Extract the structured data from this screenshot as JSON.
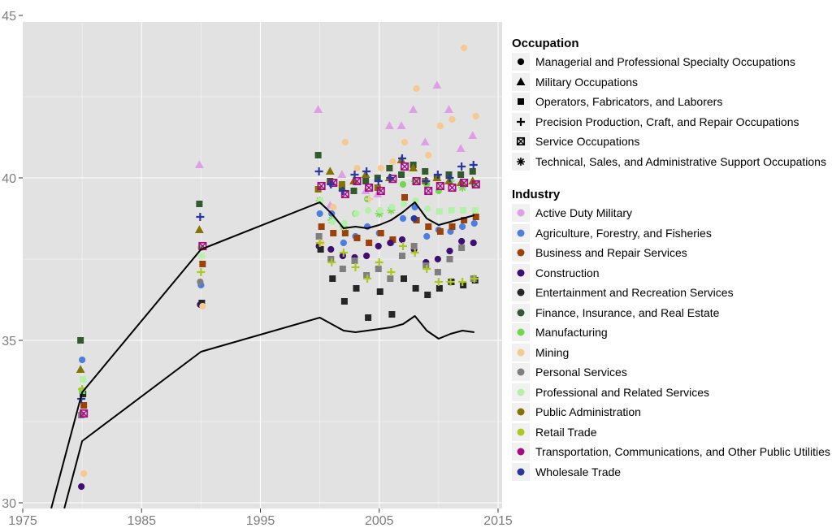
{
  "figure": {
    "background": "#FFFFFF",
    "panel_background": "#E2E2E2",
    "grid_major_color": "#FFFFFF",
    "grid_minor_color": "#FFFFFF",
    "axis_text_color": "#7E7E7E",
    "tick_color": "#333333",
    "trend_line_color": "#000000"
  },
  "legend": {
    "occupation_title": "Occupation",
    "industry_title": "Industry"
  },
  "chart_data": {
    "type": "scatter",
    "title": "",
    "xlabel": "",
    "ylabel": "",
    "xlim": [
      1975,
      2015.3
    ],
    "ylim": [
      29.8,
      45.2
    ],
    "x_ticks": [
      1975,
      1985,
      1995,
      2005,
      2015
    ],
    "y_ticks": [
      30,
      35,
      40,
      45
    ],
    "x_minor": [
      1980,
      1990,
      2000,
      2010
    ],
    "y_minor": [
      32.5,
      37.5,
      42.5
    ],
    "grid": true,
    "legend_position": "right",
    "shape_legend_title": "Occupation",
    "color_legend_title": "Industry",
    "occupations": [
      {
        "label": "Managerial and Professional Specialty Occupations",
        "shape": "circle"
      },
      {
        "label": "Military Occupations",
        "shape": "triangle"
      },
      {
        "label": "Operators, Fabricators, and Laborers",
        "shape": "square"
      },
      {
        "label": "Precision Production, Craft, and Repair Occupations",
        "shape": "plus"
      },
      {
        "label": "Service Occupations",
        "shape": "boxx"
      },
      {
        "label": "Technical, Sales, and Administrative Support Occupations",
        "shape": "asterisk"
      }
    ],
    "series": [
      {
        "name": "Active Duty Military",
        "color": "#DE9FE6",
        "shape": "triangle",
        "points": [
          [
            1990,
            40.4
          ],
          [
            2000,
            42.1
          ],
          [
            2001,
            39.15
          ],
          [
            2002,
            40.1
          ],
          [
            2003,
            39.9
          ],
          [
            2004,
            39.6
          ],
          [
            2005,
            39.5
          ],
          [
            2006,
            41.6
          ],
          [
            2007,
            41.6
          ],
          [
            2008,
            42.1
          ],
          [
            2009,
            41.1
          ],
          [
            2010,
            42.85
          ],
          [
            2011,
            42.1
          ],
          [
            2012,
            40.9
          ],
          [
            2013,
            41.3
          ]
        ]
      },
      {
        "name": "Agriculture, Forestry, and Fisheries",
        "color": "#4C7EE0",
        "shape": "circle",
        "points": [
          [
            1980,
            34.4
          ],
          [
            1990,
            36.7
          ],
          [
            2000,
            38.9
          ],
          [
            2001,
            38.9
          ],
          [
            2002,
            38.0
          ],
          [
            2003,
            38.2
          ],
          [
            2004,
            38.5
          ],
          [
            2005,
            38.3
          ],
          [
            2006,
            38.0
          ],
          [
            2007,
            38.75
          ],
          [
            2008,
            39.1
          ],
          [
            2009,
            38.2
          ],
          [
            2010,
            38.4
          ],
          [
            2011,
            38.35
          ],
          [
            2012,
            38.5
          ],
          [
            2013,
            38.6
          ]
        ]
      },
      {
        "name": "Business and Repair Services",
        "color": "#9C4108",
        "shape": "square",
        "points": [
          [
            1980,
            33.0
          ],
          [
            1990,
            37.35
          ],
          [
            2000,
            38.5
          ],
          [
            2001,
            38.3
          ],
          [
            2002,
            38.3
          ],
          [
            2003,
            38.15
          ],
          [
            2004,
            38.0
          ],
          [
            2005,
            38.3
          ],
          [
            2006,
            38.1
          ],
          [
            2007,
            39.4
          ],
          [
            2008,
            38.7
          ],
          [
            2009,
            38.5
          ],
          [
            2010,
            38.35
          ],
          [
            2011,
            38.5
          ],
          [
            2012,
            38.7
          ],
          [
            2013,
            38.8
          ]
        ]
      },
      {
        "name": "Construction",
        "color": "#400D73",
        "shape": "circle",
        "points": [
          [
            1980,
            30.5
          ],
          [
            1990,
            36.1
          ],
          [
            2000,
            37.9
          ],
          [
            2001,
            37.8
          ],
          [
            2002,
            37.6
          ],
          [
            2003,
            37.55
          ],
          [
            2004,
            37.6
          ],
          [
            2005,
            37.9
          ],
          [
            2006,
            38.0
          ],
          [
            2007,
            38.1
          ],
          [
            2008,
            37.8
          ],
          [
            2009,
            37.4
          ],
          [
            2010,
            37.5
          ],
          [
            2011,
            37.75
          ],
          [
            2012,
            38.05
          ],
          [
            2013,
            38.0
          ]
        ]
      },
      {
        "name": "Entertainment and Recreation Services",
        "color": "#262626",
        "shape": "square",
        "points": [
          [
            1980,
            33.35
          ],
          [
            1990,
            36.15
          ],
          [
            2000,
            37.8
          ],
          [
            2001,
            36.9
          ],
          [
            2002,
            36.2
          ],
          [
            2003,
            36.6
          ],
          [
            2004,
            35.7
          ],
          [
            2005,
            36.5
          ],
          [
            2006,
            35.8
          ],
          [
            2007,
            36.9
          ],
          [
            2008,
            36.6
          ],
          [
            2009,
            36.4
          ],
          [
            2010,
            36.6
          ],
          [
            2011,
            36.8
          ],
          [
            2012,
            36.7
          ],
          [
            2013,
            36.85
          ]
        ]
      },
      {
        "name": "Finance, Insurance, and Real Estate",
        "color": "#33592E",
        "shape": "square",
        "points": [
          [
            1980,
            35.0
          ],
          [
            1990,
            39.2
          ],
          [
            2000,
            40.7
          ],
          [
            2001,
            39.9
          ],
          [
            2002,
            39.7
          ],
          [
            2003,
            39.6
          ],
          [
            2004,
            39.9
          ],
          [
            2005,
            40.0
          ],
          [
            2006,
            40.3
          ],
          [
            2007,
            40.1
          ],
          [
            2008,
            40.4
          ],
          [
            2009,
            40.2
          ],
          [
            2010,
            40.0
          ],
          [
            2011,
            40.1
          ],
          [
            2012,
            40.1
          ],
          [
            2013,
            40.2
          ]
        ]
      },
      {
        "name": "Manufacturing",
        "color": "#72D74F",
        "shape": "circle",
        "points": [
          [
            1980,
            33.45,
            "square"
          ],
          [
            1990,
            37.85
          ],
          [
            2000,
            39.3,
            "asterisk"
          ],
          [
            2001,
            38.7,
            "asterisk"
          ],
          [
            2002,
            38.5,
            "asterisk"
          ],
          [
            2003,
            38.9
          ],
          [
            2004,
            39.35
          ],
          [
            2005,
            38.9,
            "asterisk"
          ],
          [
            2006,
            39.0,
            "asterisk"
          ],
          [
            2007,
            39.8
          ],
          [
            2008,
            39.9,
            "asterisk"
          ],
          [
            2009,
            39.8
          ],
          [
            2010,
            39.6
          ],
          [
            2011,
            39.9,
            "asterisk"
          ],
          [
            2012,
            39.7,
            "asterisk"
          ],
          [
            2013,
            39.8
          ]
        ]
      },
      {
        "name": "Mining",
        "color": "#F5C98F",
        "shape": "circle",
        "points": [
          [
            1980,
            30.9
          ],
          [
            1990,
            36.05
          ],
          [
            2000,
            38.0
          ],
          [
            2001,
            39.1
          ],
          [
            2002,
            41.1
          ],
          [
            2003,
            40.3
          ],
          [
            2004,
            39.35,
            "plus"
          ],
          [
            2005,
            40.3
          ],
          [
            2006,
            40.5
          ],
          [
            2007,
            41.1
          ],
          [
            2008,
            42.75
          ],
          [
            2009,
            40.7
          ],
          [
            2010,
            41.6
          ],
          [
            2011,
            41.8
          ],
          [
            2012,
            44.0
          ],
          [
            2013,
            41.9
          ]
        ]
      },
      {
        "name": "Personal Services",
        "color": "#7F7F7F",
        "shape": "square",
        "points": [
          [
            1980,
            32.7
          ],
          [
            1990,
            36.8,
            "circle"
          ],
          [
            2000,
            38.2
          ],
          [
            2001,
            37.5
          ],
          [
            2002,
            37.2
          ],
          [
            2003,
            37.45
          ],
          [
            2004,
            37.0
          ],
          [
            2005,
            37.2
          ],
          [
            2006,
            36.9
          ],
          [
            2007,
            37.6
          ],
          [
            2008,
            37.9
          ],
          [
            2009,
            37.3
          ],
          [
            2010,
            37.1
          ],
          [
            2011,
            37.5
          ],
          [
            2012,
            37.85
          ],
          [
            2013,
            36.9
          ]
        ]
      },
      {
        "name": "Professional and Related Services",
        "color": "#B3F0A8",
        "shape": "circle",
        "points": [
          [
            1980,
            33.8,
            "square"
          ],
          [
            1990,
            37.6,
            "asterisk"
          ],
          [
            2000,
            39.3
          ],
          [
            2001,
            38.65
          ],
          [
            2002,
            38.6
          ],
          [
            2003,
            38.9
          ],
          [
            2004,
            39.0
          ],
          [
            2005,
            39.0
          ],
          [
            2006,
            39.1
          ],
          [
            2007,
            39.2
          ],
          [
            2008,
            39.3
          ],
          [
            2009,
            39.05
          ],
          [
            2010,
            38.97,
            "square"
          ],
          [
            2011,
            39.0,
            "square"
          ],
          [
            2012,
            39.0,
            "square"
          ],
          [
            2013,
            39.0,
            "square"
          ]
        ]
      },
      {
        "name": "Public Administration",
        "color": "#857200",
        "shape": "triangle",
        "points": [
          [
            1980,
            34.1
          ],
          [
            1990,
            38.4
          ],
          [
            2000,
            39.65,
            "square"
          ],
          [
            2001,
            40.2
          ],
          [
            2002,
            39.8,
            "square"
          ],
          [
            2003,
            39.9
          ],
          [
            2004,
            40.1
          ],
          [
            2005,
            39.7,
            "square"
          ],
          [
            2006,
            40.0
          ],
          [
            2007,
            40.55
          ],
          [
            2008,
            40.3
          ],
          [
            2009,
            39.9,
            "square"
          ],
          [
            2010,
            40.0
          ],
          [
            2011,
            39.9
          ],
          [
            2012,
            39.85
          ],
          [
            2013,
            39.9
          ]
        ]
      },
      {
        "name": "Retail Trade",
        "color": "#ABC722",
        "shape": "plus",
        "points": [
          [
            1980,
            33.5
          ],
          [
            1990,
            37.1
          ],
          [
            2000,
            38.0
          ],
          [
            2001,
            37.4
          ],
          [
            2002,
            37.7
          ],
          [
            2003,
            37.25
          ],
          [
            2004,
            36.9
          ],
          [
            2005,
            37.4
          ],
          [
            2006,
            37.1
          ],
          [
            2007,
            37.9
          ],
          [
            2008,
            37.7
          ],
          [
            2009,
            37.2
          ],
          [
            2010,
            36.8
          ],
          [
            2011,
            36.8
          ],
          [
            2012,
            36.8
          ],
          [
            2013,
            36.9
          ]
        ]
      },
      {
        "name": "Transportation, Communications, and Other Public Utilities",
        "color": "#A50B82",
        "shape": "boxx",
        "points": [
          [
            1980,
            32.75
          ],
          [
            1990,
            37.9
          ],
          [
            2000,
            39.75
          ],
          [
            2001,
            39.85
          ],
          [
            2002,
            39.5
          ],
          [
            2003,
            39.9
          ],
          [
            2004,
            39.7
          ],
          [
            2005,
            39.6
          ],
          [
            2006,
            39.97
          ],
          [
            2007,
            40.35
          ],
          [
            2008,
            39.9
          ],
          [
            2009,
            39.6
          ],
          [
            2010,
            39.75
          ],
          [
            2011,
            39.7
          ],
          [
            2012,
            39.85
          ],
          [
            2013,
            39.8
          ]
        ]
      },
      {
        "name": "Wholesale Trade",
        "color": "#27379E",
        "shape": "plus",
        "points": [
          [
            1980,
            33.2
          ],
          [
            1990,
            38.8
          ],
          [
            2000,
            40.2
          ],
          [
            2001,
            39.8
          ],
          [
            2002,
            39.6
          ],
          [
            2003,
            40.1
          ],
          [
            2004,
            40.2
          ],
          [
            2005,
            39.9
          ],
          [
            2006,
            40.0
          ],
          [
            2007,
            40.6
          ],
          [
            2008,
            38.75,
            "circle"
          ],
          [
            2009,
            39.9
          ],
          [
            2010,
            40.1
          ],
          [
            2011,
            40.0
          ],
          [
            2012,
            40.35
          ],
          [
            2013,
            40.4
          ]
        ]
      }
    ],
    "trend_lines": [
      {
        "name": "trend-line-upper",
        "color": "#000000",
        "points": [
          [
            1977.4,
            29.83
          ],
          [
            1980,
            33.4
          ],
          [
            1990,
            37.8
          ],
          [
            2000,
            39.25
          ],
          [
            2001,
            38.9
          ],
          [
            2002,
            38.45
          ],
          [
            2003,
            38.5
          ],
          [
            2004,
            38.45
          ],
          [
            2005,
            38.55
          ],
          [
            2006,
            38.7
          ],
          [
            2007,
            38.95
          ],
          [
            2008,
            39.25
          ],
          [
            2009,
            38.75
          ],
          [
            2010,
            38.55
          ],
          [
            2011,
            38.65
          ],
          [
            2012,
            38.75
          ],
          [
            2013,
            38.85
          ]
        ]
      },
      {
        "name": "trend-line-lower",
        "color": "#000000",
        "points": [
          [
            1978.5,
            29.83
          ],
          [
            1980,
            31.9
          ],
          [
            1990,
            34.65
          ],
          [
            2000,
            35.7
          ],
          [
            2001,
            35.5
          ],
          [
            2002,
            35.3
          ],
          [
            2003,
            35.25
          ],
          [
            2004,
            35.3
          ],
          [
            2005,
            35.35
          ],
          [
            2006,
            35.4
          ],
          [
            2007,
            35.5
          ],
          [
            2008,
            35.75
          ],
          [
            2009,
            35.3
          ],
          [
            2010,
            35.05
          ],
          [
            2011,
            35.2
          ],
          [
            2012,
            35.3
          ],
          [
            2013,
            35.25
          ]
        ]
      }
    ]
  }
}
